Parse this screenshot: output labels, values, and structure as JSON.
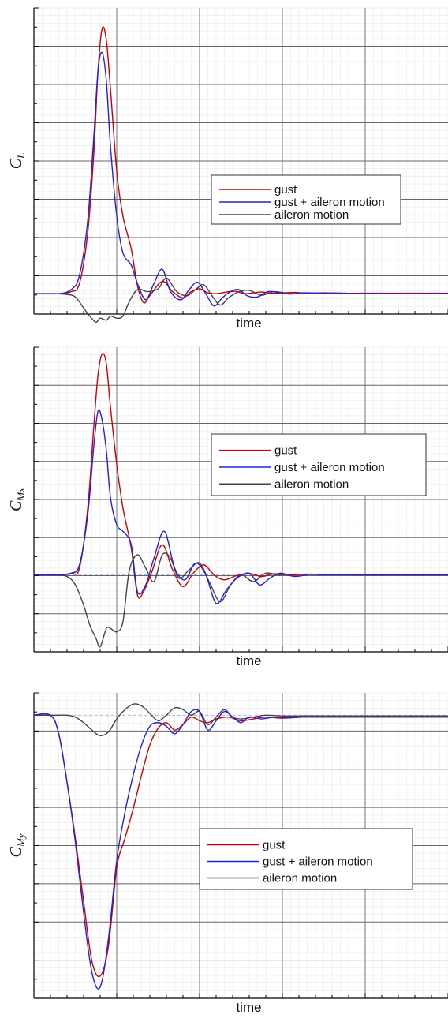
{
  "chart_data": [
    {
      "type": "line",
      "ylabel": "C",
      "ylabel_sub": "L",
      "xlabel": "time",
      "xlim": [
        0,
        10
      ],
      "ylim": [
        -0.5,
        7
      ],
      "grid": true,
      "legend_position": "right",
      "colors": {
        "gust": "#cc0000",
        "gust_aileron": "#2222dd",
        "aileron": "#444444",
        "baseline": "#aaaaff"
      },
      "series": [
        {
          "name": "gust",
          "color": "#cc0000",
          "x": [
            0,
            0.6,
            0.9,
            1.1,
            1.3,
            1.45,
            1.55,
            1.65,
            1.75,
            1.85,
            2.0,
            2.15,
            2.35,
            2.5,
            2.65,
            2.8,
            3.1,
            3.35,
            3.6,
            3.8,
            4.0,
            4.2,
            4.4,
            4.6,
            4.85,
            5.1,
            5.3,
            5.5,
            5.75,
            6.0,
            6.3,
            6.6,
            7.0,
            7.5,
            8.0,
            10
          ],
          "y": [
            0,
            0,
            0.05,
            0.25,
            1.5,
            3.5,
            5.5,
            6.5,
            6.2,
            5.0,
            3.0,
            1.9,
            1.1,
            0.2,
            -0.22,
            -0.05,
            0.3,
            0.05,
            -0.1,
            0.05,
            0.12,
            0.02,
            0.0,
            0.03,
            0.06,
            0.0,
            0.02,
            0.04,
            0.01,
            0.02,
            0.03,
            0.01,
            0.02,
            0.01,
            0.01,
            0.01
          ]
        },
        {
          "name": "gust + aileron motion",
          "color": "#2222dd",
          "x": [
            0,
            0.6,
            0.9,
            1.1,
            1.3,
            1.45,
            1.55,
            1.65,
            1.75,
            1.85,
            2.0,
            2.15,
            2.35,
            2.5,
            2.7,
            2.9,
            3.1,
            3.3,
            3.55,
            3.75,
            3.95,
            4.15,
            4.35,
            4.55,
            4.75,
            4.95,
            5.15,
            5.4,
            5.65,
            5.9,
            6.2,
            6.5,
            6.9,
            7.3,
            8.0,
            10
          ],
          "y": [
            0,
            0,
            0.1,
            0.45,
            1.8,
            3.9,
            5.5,
            5.9,
            5.2,
            3.6,
            1.9,
            1.0,
            0.7,
            0.25,
            -0.15,
            0.25,
            0.6,
            0.05,
            -0.15,
            0.1,
            0.28,
            0.0,
            -0.3,
            -0.1,
            0.05,
            0.1,
            -0.05,
            -0.08,
            0.05,
            0.03,
            -0.01,
            0.02,
            0.01,
            0.01,
            0.0,
            0.0
          ]
        },
        {
          "name": "aileron motion",
          "color": "#444444",
          "x": [
            0,
            0.5,
            0.8,
            1.0,
            1.2,
            1.35,
            1.5,
            1.6,
            1.75,
            1.85,
            2.0,
            2.15,
            2.3,
            2.5,
            2.75,
            3.0,
            3.2,
            3.45,
            3.7,
            3.9,
            4.1,
            4.3,
            4.5,
            4.7,
            4.95,
            5.2,
            5.5,
            5.8,
            6.2,
            6.6,
            7.0,
            7.5,
            8.0,
            10
          ],
          "y": [
            0,
            0,
            -0.02,
            -0.08,
            -0.35,
            -0.55,
            -0.7,
            -0.6,
            -0.65,
            -0.55,
            -0.6,
            -0.55,
            -0.2,
            0.1,
            0.05,
            0.12,
            0.38,
            0.05,
            -0.05,
            0.1,
            0.22,
            -0.05,
            -0.28,
            -0.1,
            0.05,
            0.08,
            -0.04,
            0.05,
            0.0,
            0.02,
            0.01,
            0.01,
            0.0,
            0.0
          ]
        }
      ],
      "legend": [
        "gust",
        "gust + aileron motion",
        "aileron motion"
      ]
    },
    {
      "type": "line",
      "ylabel": "C",
      "ylabel_sub": "Mx",
      "xlabel": "time",
      "xlim": [
        0,
        10
      ],
      "ylim": [
        -2.3,
        6.8
      ],
      "grid": true,
      "legend_position": "right",
      "series": [
        {
          "name": "gust",
          "color": "#cc0000",
          "x": [
            0,
            0.6,
            0.9,
            1.1,
            1.3,
            1.45,
            1.55,
            1.65,
            1.75,
            1.85,
            2.0,
            2.15,
            2.35,
            2.5,
            2.65,
            2.85,
            3.1,
            3.35,
            3.6,
            3.85,
            4.1,
            4.35,
            4.6,
            4.9,
            5.2,
            5.5,
            5.8,
            6.2,
            6.6,
            7.0,
            8.0,
            10
          ],
          "y": [
            0,
            0,
            0.05,
            0.2,
            2.0,
            4.5,
            6.0,
            6.6,
            6.3,
            5.0,
            3.3,
            2.0,
            0.8,
            -0.6,
            -0.5,
            0.1,
            0.9,
            0.15,
            -0.35,
            0.05,
            0.3,
            0.0,
            -0.15,
            -0.02,
            0.04,
            -0.05,
            0.03,
            0.0,
            0.02,
            0.01,
            0.0,
            0.0
          ]
        },
        {
          "name": "gust + aileron motion",
          "color": "#2222dd",
          "x": [
            0,
            0.6,
            0.9,
            1.1,
            1.3,
            1.45,
            1.55,
            1.65,
            1.75,
            1.85,
            2.0,
            2.15,
            2.35,
            2.5,
            2.7,
            2.9,
            3.15,
            3.4,
            3.65,
            3.9,
            4.15,
            4.4,
            4.65,
            4.9,
            5.2,
            5.45,
            5.7,
            5.95,
            6.3,
            6.7,
            7.0,
            8.0,
            10
          ],
          "y": [
            0,
            0,
            0.05,
            0.3,
            1.8,
            3.9,
            4.9,
            4.6,
            3.7,
            2.3,
            1.5,
            1.3,
            0.9,
            -0.5,
            -0.3,
            0.5,
            1.3,
            0.2,
            -0.15,
            0.35,
            0.0,
            -0.85,
            -0.45,
            -0.1,
            0.05,
            -0.3,
            -0.1,
            0.05,
            -0.05,
            0.02,
            0.0,
            0.0,
            0.0
          ]
        },
        {
          "name": "aileron motion",
          "color": "#444444",
          "x": [
            0,
            0.5,
            0.8,
            1.0,
            1.2,
            1.35,
            1.5,
            1.6,
            1.75,
            1.85,
            2.0,
            2.15,
            2.3,
            2.5,
            2.7,
            2.9,
            3.1,
            3.3,
            3.5,
            3.75,
            4.0,
            4.25,
            4.5,
            4.75,
            5.0,
            5.3,
            5.6,
            5.9,
            6.3,
            6.7,
            8.0,
            10
          ],
          "y": [
            0,
            0,
            -0.05,
            -0.3,
            -0.9,
            -1.5,
            -1.9,
            -2.15,
            -1.6,
            -1.6,
            -1.7,
            -1.4,
            0.1,
            0.6,
            0.2,
            -0.2,
            0.6,
            0.5,
            -0.1,
            0.15,
            0.35,
            -0.25,
            -0.8,
            -0.3,
            0.0,
            -0.2,
            0.05,
            0.0,
            0.02,
            0.01,
            0.0,
            0.0
          ]
        }
      ],
      "legend": [
        "gust",
        "gust + aileron motion",
        "aileron motion"
      ]
    },
    {
      "type": "line",
      "ylabel": "C",
      "ylabel_sub": "My",
      "xlabel": "time",
      "xlim": [
        0,
        10
      ],
      "ylim": [
        -7.6,
        0.6
      ],
      "grid": true,
      "legend_position": "right",
      "series": [
        {
          "name": "gust",
          "color": "#cc0000",
          "x": [
            0,
            0.4,
            0.6,
            0.8,
            1.0,
            1.2,
            1.4,
            1.6,
            1.8,
            2.0,
            2.2,
            2.4,
            2.6,
            2.8,
            3.0,
            3.2,
            3.4,
            3.6,
            3.8,
            4.0,
            4.2,
            4.4,
            4.7,
            5.0,
            5.3,
            5.6,
            6.0,
            6.5,
            7.0,
            8.0,
            10
          ],
          "y": [
            0,
            0,
            -0.5,
            -1.8,
            -3.3,
            -5.0,
            -6.6,
            -7.0,
            -6.2,
            -4.1,
            -3.3,
            -2.5,
            -1.6,
            -0.8,
            -0.35,
            -0.2,
            -0.4,
            -0.25,
            -0.05,
            -0.15,
            -0.2,
            -0.1,
            -0.05,
            -0.15,
            -0.1,
            -0.05,
            -0.08,
            -0.05,
            -0.05,
            -0.05,
            -0.05
          ]
        },
        {
          "name": "gust + aileron motion",
          "color": "#2222dd",
          "x": [
            0,
            0.4,
            0.6,
            0.8,
            1.0,
            1.2,
            1.4,
            1.6,
            1.8,
            2.0,
            2.2,
            2.4,
            2.6,
            2.8,
            3.0,
            3.2,
            3.4,
            3.6,
            3.8,
            4.0,
            4.2,
            4.4,
            4.6,
            4.8,
            5.0,
            5.2,
            5.5,
            5.8,
            6.1,
            6.5,
            7.0,
            8.0,
            10
          ],
          "y": [
            0,
            0,
            -0.5,
            -1.8,
            -3.4,
            -5.3,
            -6.9,
            -7.3,
            -6.0,
            -3.9,
            -2.6,
            -1.6,
            -0.8,
            -0.3,
            -0.2,
            -0.3,
            -0.5,
            -0.25,
            0.1,
            0.1,
            -0.4,
            -0.15,
            0.1,
            -0.05,
            -0.2,
            -0.05,
            -0.1,
            -0.05,
            -0.07,
            -0.05,
            -0.05,
            -0.05,
            -0.05
          ]
        },
        {
          "name": "aileron motion",
          "color": "#444444",
          "x": [
            0,
            0.5,
            0.8,
            1.0,
            1.2,
            1.4,
            1.6,
            1.8,
            2.0,
            2.2,
            2.4,
            2.6,
            2.8,
            3.0,
            3.2,
            3.4,
            3.6,
            3.8,
            4.0,
            4.2,
            4.4,
            4.6,
            4.8,
            5.0,
            5.3,
            5.6,
            6.0,
            6.5,
            7.0,
            8.0,
            10
          ],
          "y": [
            0,
            0,
            0.0,
            -0.05,
            -0.2,
            -0.4,
            -0.55,
            -0.45,
            -0.1,
            0.15,
            0.3,
            0.25,
            0.05,
            -0.15,
            0.0,
            0.2,
            0.15,
            0.0,
            0.1,
            -0.25,
            -0.05,
            0.15,
            -0.05,
            -0.1,
            -0.05,
            0.0,
            -0.02,
            -0.02,
            -0.02,
            -0.02,
            -0.02
          ]
        }
      ],
      "legend": [
        "gust",
        "gust + aileron motion",
        "aileron motion"
      ]
    }
  ]
}
